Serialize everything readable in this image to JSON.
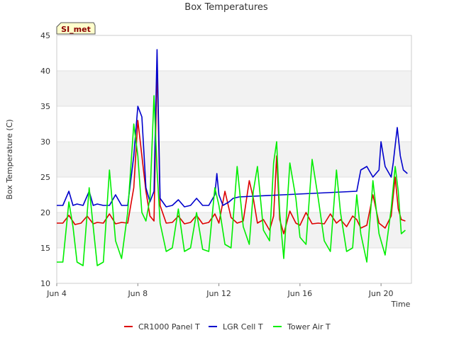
{
  "chart_data": {
    "type": "line",
    "title": "Box Temperatures",
    "xlabel": "Time",
    "ylabel": "Box Temperature (C)",
    "badge": "SI_met",
    "xlim": [
      4,
      21.5
    ],
    "ylim": [
      10,
      45
    ],
    "x_unit": "days since May 31 (June day number)",
    "x_ticks": [
      {
        "value": 4,
        "label": "Jun 4"
      },
      {
        "value": 8,
        "label": "Jun 8"
      },
      {
        "value": 12,
        "label": "Jun 12"
      },
      {
        "value": 16,
        "label": "Jun 16"
      },
      {
        "value": 20,
        "label": "Jun 20"
      }
    ],
    "y_ticks": [
      10,
      15,
      20,
      25,
      30,
      35,
      40,
      45
    ],
    "band_color": "#f2f2f2",
    "series": [
      {
        "name": "CR1000 Panel T",
        "color": "#dd0000",
        "x": [
          4.0,
          4.3,
          4.6,
          4.9,
          5.2,
          5.5,
          5.8,
          6.0,
          6.3,
          6.6,
          6.9,
          7.2,
          7.5,
          7.8,
          8.0,
          8.2,
          8.4,
          8.6,
          8.8,
          8.95,
          9.1,
          9.4,
          9.7,
          10.0,
          10.3,
          10.6,
          10.9,
          11.2,
          11.5,
          11.8,
          12.0,
          12.3,
          12.6,
          12.9,
          13.2,
          13.5,
          13.7,
          13.9,
          14.2,
          14.5,
          14.7,
          14.85,
          15.0,
          15.2,
          15.5,
          15.8,
          16.0,
          16.3,
          16.6,
          16.9,
          17.2,
          17.5,
          17.8,
          18.0,
          18.3,
          18.6,
          18.8,
          19.0,
          19.3,
          19.6,
          19.9,
          20.2,
          20.5,
          20.7,
          20.85,
          21.0,
          21.2
        ],
        "y": [
          18.5,
          18.5,
          19.6,
          18.3,
          18.5,
          19.5,
          18.4,
          18.6,
          18.5,
          19.8,
          18.4,
          18.6,
          18.5,
          23.5,
          33.0,
          28.0,
          23.0,
          19.5,
          18.8,
          41.0,
          21.0,
          18.5,
          18.6,
          19.5,
          18.4,
          18.6,
          19.6,
          18.4,
          18.6,
          19.8,
          18.5,
          23.0,
          19.3,
          18.5,
          18.8,
          24.5,
          22.0,
          18.5,
          19.0,
          17.5,
          19.5,
          28.0,
          19.0,
          17.0,
          20.2,
          18.5,
          18.2,
          20.0,
          18.4,
          18.5,
          18.4,
          19.8,
          18.5,
          19.0,
          18.0,
          19.5,
          19.0,
          17.8,
          18.2,
          22.5,
          18.5,
          17.8,
          19.5,
          25.0,
          20.5,
          19.0,
          18.8
        ]
      },
      {
        "name": "LGR Cell T",
        "color": "#0000cc",
        "x": [
          4.0,
          4.3,
          4.6,
          4.8,
          5.0,
          5.3,
          5.6,
          5.8,
          6.0,
          6.3,
          6.6,
          6.9,
          7.2,
          7.5,
          7.8,
          8.0,
          8.2,
          8.4,
          8.6,
          8.8,
          8.95,
          9.1,
          9.4,
          9.7,
          10.0,
          10.3,
          10.6,
          10.9,
          11.2,
          11.5,
          11.8,
          11.9,
          12.0,
          12.2,
          12.5,
          12.7,
          13.0,
          18.8,
          19.0,
          19.3,
          19.6,
          19.9,
          20.0,
          20.2,
          20.5,
          20.6,
          20.8,
          20.95,
          21.1,
          21.3
        ],
        "y": [
          21.0,
          21.0,
          23.0,
          21.0,
          21.2,
          21.0,
          23.0,
          21.0,
          21.2,
          21.0,
          21.0,
          22.5,
          21.0,
          21.0,
          28.0,
          35.0,
          33.5,
          23.5,
          21.5,
          23.0,
          43.0,
          22.0,
          20.8,
          21.0,
          21.8,
          20.8,
          21.0,
          22.0,
          21.0,
          21.0,
          22.5,
          25.5,
          22.5,
          21.0,
          21.5,
          22.0,
          22.2,
          23.0,
          26.0,
          26.5,
          25.0,
          26.0,
          30.0,
          26.5,
          25.0,
          27.0,
          32.0,
          28.0,
          26.0,
          25.5
        ]
      },
      {
        "name": "Tower Air T",
        "color": "#00ee00",
        "x": [
          4.0,
          4.3,
          4.6,
          4.8,
          5.0,
          5.3,
          5.6,
          5.8,
          6.0,
          6.3,
          6.6,
          6.9,
          7.2,
          7.5,
          7.8,
          8.0,
          8.2,
          8.4,
          8.6,
          8.8,
          8.95,
          9.1,
          9.4,
          9.7,
          10.0,
          10.3,
          10.6,
          10.9,
          11.2,
          11.5,
          11.8,
          12.0,
          12.3,
          12.6,
          12.9,
          13.2,
          13.5,
          13.7,
          13.9,
          14.2,
          14.5,
          14.7,
          14.85,
          15.0,
          15.2,
          15.5,
          15.8,
          16.0,
          16.3,
          16.6,
          16.9,
          17.2,
          17.5,
          17.8,
          18.0,
          18.3,
          18.6,
          18.8,
          19.0,
          19.3,
          19.6,
          19.9,
          20.2,
          20.5,
          20.7,
          20.85,
          21.0,
          21.2
        ],
        "y": [
          13.0,
          13.0,
          21.5,
          18.0,
          13.0,
          12.5,
          23.5,
          18.0,
          12.5,
          13.0,
          26.0,
          16.0,
          13.5,
          20.0,
          32.5,
          28.0,
          20.0,
          18.8,
          22.0,
          36.5,
          26.0,
          18.5,
          14.5,
          15.0,
          20.5,
          14.5,
          15.0,
          20.0,
          14.8,
          14.5,
          23.5,
          21.0,
          15.5,
          15.0,
          26.5,
          18.0,
          15.5,
          23.0,
          26.5,
          17.5,
          16.0,
          27.0,
          30.0,
          20.0,
          13.5,
          27.0,
          22.0,
          16.5,
          15.5,
          27.5,
          22.0,
          16.0,
          14.5,
          26.0,
          20.0,
          14.5,
          15.0,
          22.5,
          17.0,
          13.0,
          24.5,
          17.0,
          14.0,
          20.5,
          26.5,
          23.0,
          17.0,
          17.5
        ]
      }
    ],
    "legend_position": "bottom"
  }
}
